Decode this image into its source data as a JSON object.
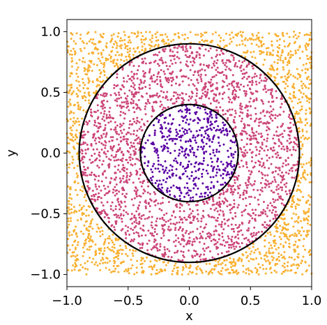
{
  "chart_data": {
    "type": "scatter",
    "title": "",
    "xlabel": "x",
    "ylabel": "y",
    "xlim": [
      -1.0,
      1.0
    ],
    "ylim": [
      -1.1,
      1.1
    ],
    "x_ticks": [
      -1.0,
      -0.5,
      0.0,
      0.5,
      1.0
    ],
    "x_tick_labels": [
      "−1.0",
      "−0.5",
      "0.0",
      "0.5",
      "1.0"
    ],
    "y_ticks": [
      -1.0,
      -0.5,
      0.0,
      0.5,
      1.0
    ],
    "y_tick_labels": [
      "−1.0",
      "−0.5",
      "0.0",
      "0.5",
      "1.0"
    ],
    "grid": false,
    "legend": "none",
    "point_sampling": {
      "description_hidden": true,
      "count": 4200,
      "x_range": [
        -1.0,
        1.0
      ],
      "y_range": [
        -1.0,
        1.0
      ]
    },
    "classes": [
      {
        "rule": "r <= 0.4",
        "color": "#5b02a3"
      },
      {
        "rule": "0.4 < r <= 0.9",
        "color": "#cc4679"
      },
      {
        "rule": "r > 0.9",
        "color": "#f9b031"
      }
    ],
    "circles": [
      {
        "cx": 0.0,
        "cy": 0.0,
        "r": 0.4,
        "color": "#000000"
      },
      {
        "cx": 0.0,
        "cy": 0.0,
        "r": 0.9,
        "color": "#000000"
      }
    ]
  }
}
